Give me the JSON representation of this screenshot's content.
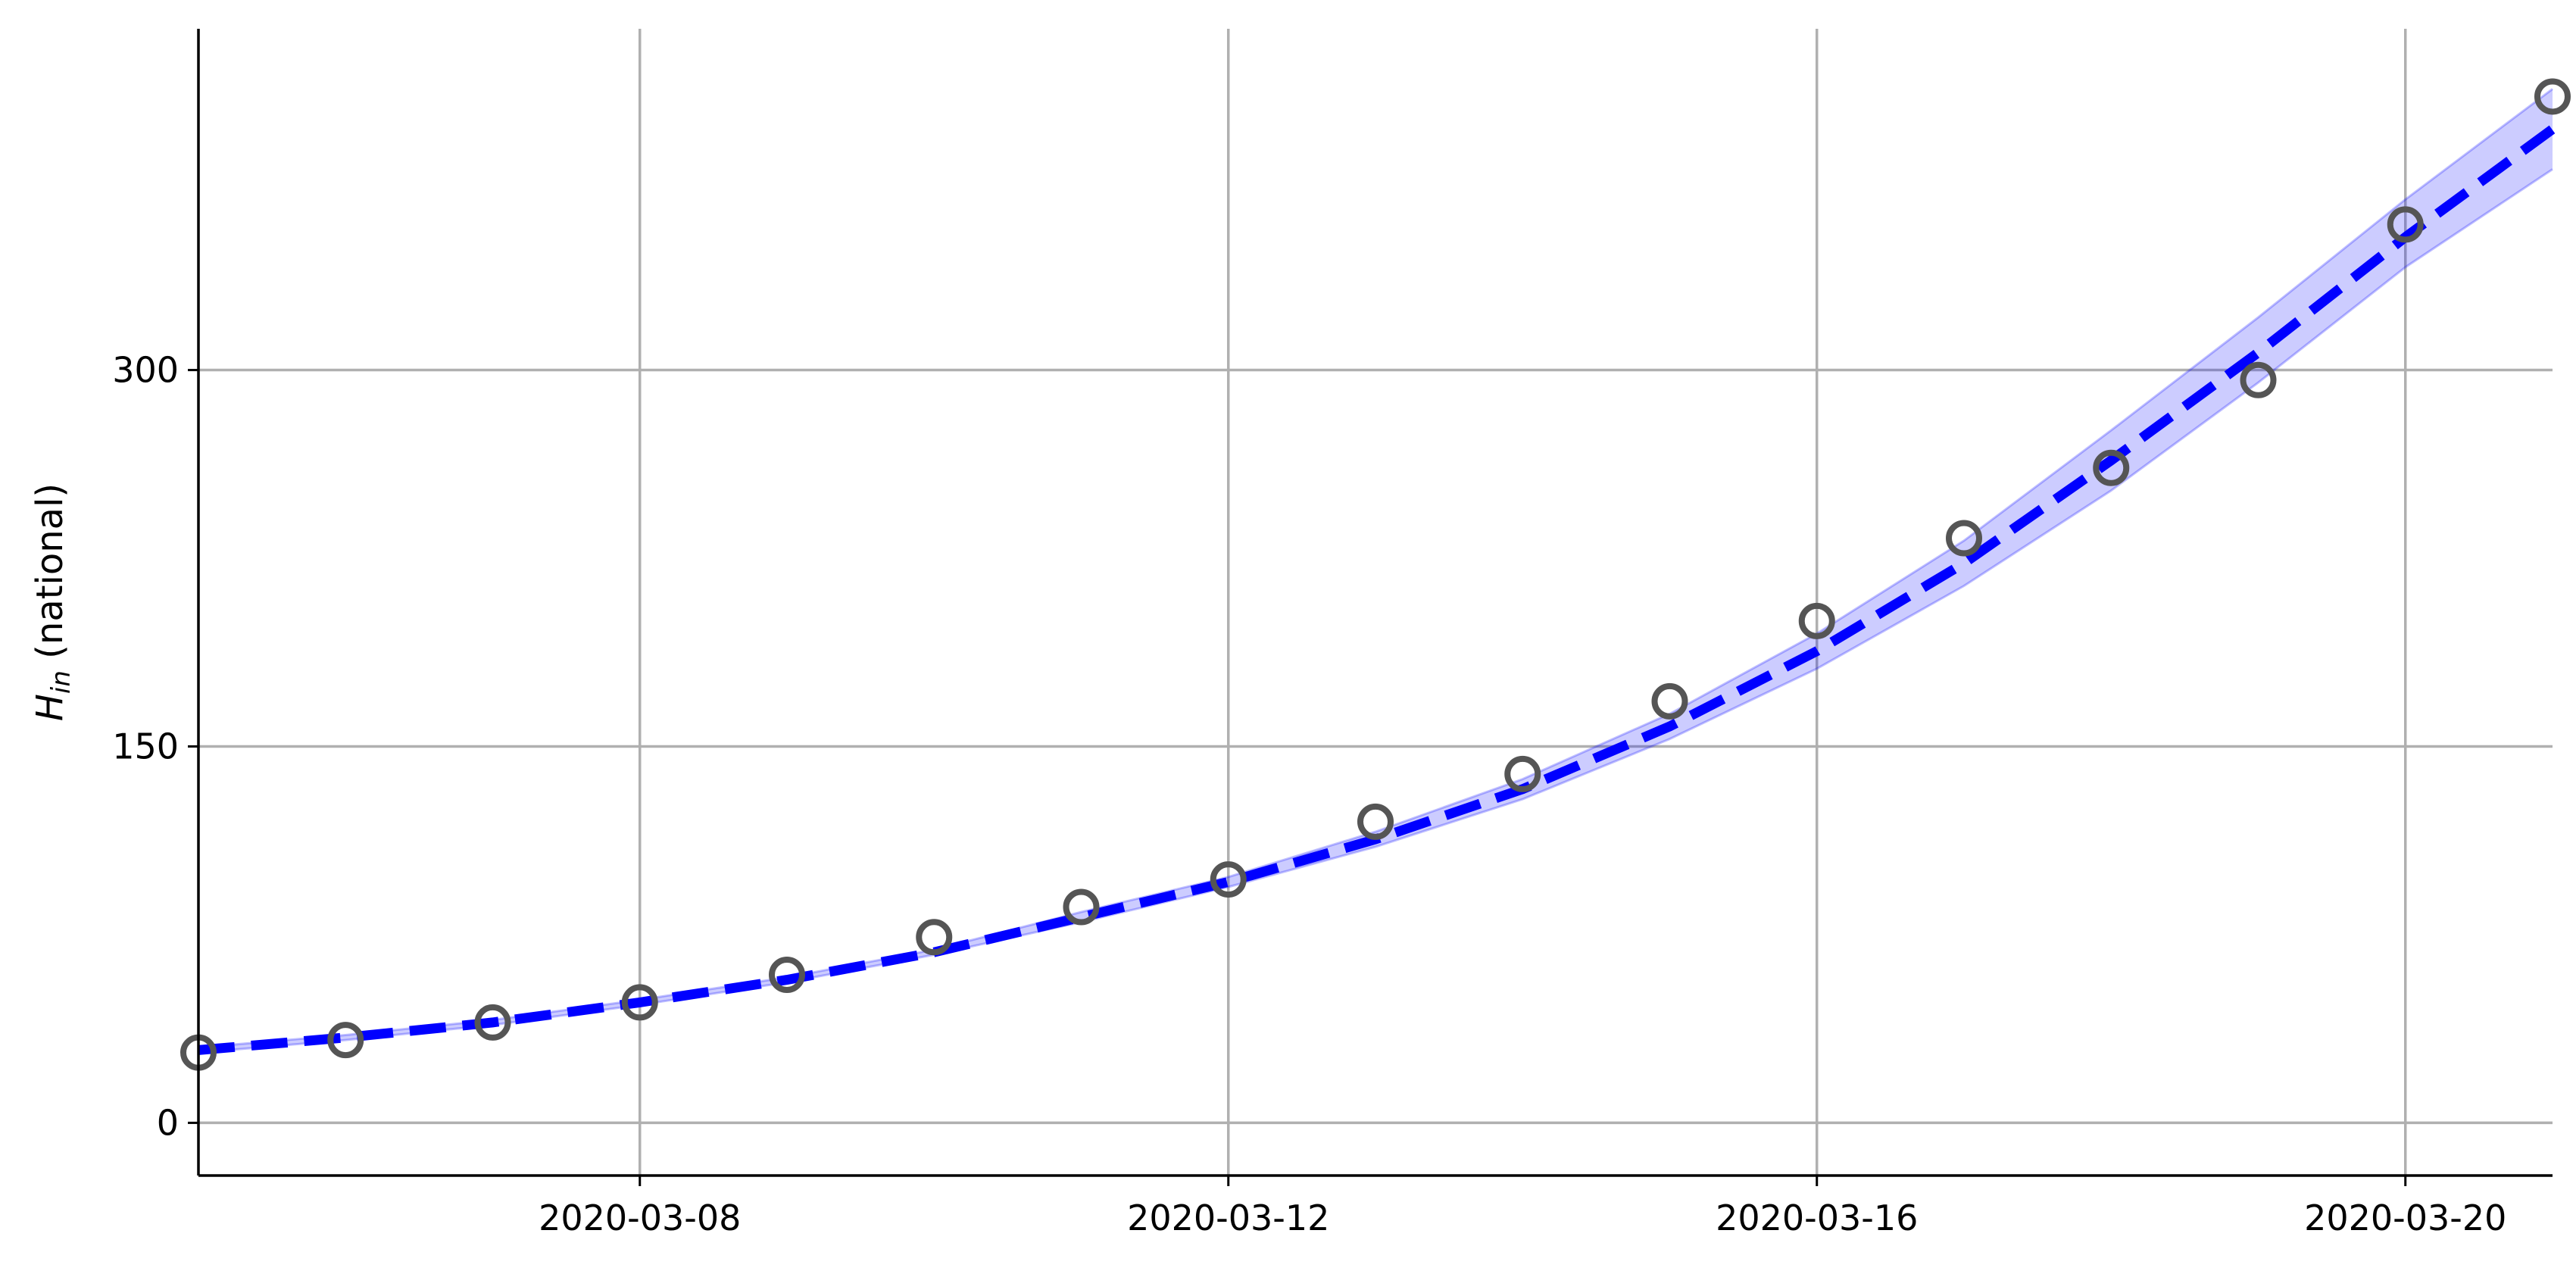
{
  "chart_data": {
    "type": "line",
    "ylabel_main": "H",
    "ylabel_sub": "in",
    "ylabel_rest": " (national)",
    "x_ticks": [
      "2020-03-08",
      "2020-03-12",
      "2020-03-16",
      "2020-03-20"
    ],
    "y_ticks": [
      0,
      150,
      300
    ],
    "xlim": [
      "2020-03-05",
      "2020-03-21"
    ],
    "ylim": [
      -21,
      436
    ],
    "grid": true,
    "colors": {
      "model": "#0000ff",
      "band": "#0000ff",
      "observed_marker": "#555555",
      "grid": "#b0b0b0"
    },
    "series": [
      {
        "kind": "observed",
        "x": [
          "2020-03-05",
          "2020-03-06",
          "2020-03-07",
          "2020-03-08",
          "2020-03-09",
          "2020-03-10",
          "2020-03-11",
          "2020-03-12",
          "2020-03-13",
          "2020-03-14",
          "2020-03-15",
          "2020-03-16",
          "2020-03-17",
          "2020-03-18",
          "2020-03-19",
          "2020-03-20",
          "2020-03-21"
        ],
        "y": [
          28,
          33,
          40,
          48,
          59,
          74,
          86,
          97,
          120,
          139,
          168,
          200,
          233,
          261,
          296,
          358,
          409
        ]
      },
      {
        "kind": "model",
        "x": [
          "2020-03-05",
          "2020-03-06",
          "2020-03-07",
          "2020-03-08",
          "2020-03-09",
          "2020-03-10",
          "2020-03-11",
          "2020-03-12",
          "2020-03-13",
          "2020-03-14",
          "2020-03-15",
          "2020-03-16",
          "2020-03-17",
          "2020-03-18",
          "2020-03-19",
          "2020-03-20",
          "2020-03-21"
        ],
        "y": [
          29,
          34,
          40,
          48,
          57,
          68,
          82,
          96,
          113,
          133,
          158,
          188,
          223,
          264,
          307,
          353,
          396
        ],
        "lower": [
          28,
          33,
          39,
          47,
          56,
          67,
          80,
          94,
          110,
          129,
          153,
          181,
          214,
          252,
          295,
          341,
          380
        ],
        "upper": [
          30,
          35,
          41,
          49,
          58,
          69,
          84,
          98,
          116,
          137,
          163,
          195,
          232,
          276,
          321,
          368,
          412
        ]
      }
    ]
  }
}
